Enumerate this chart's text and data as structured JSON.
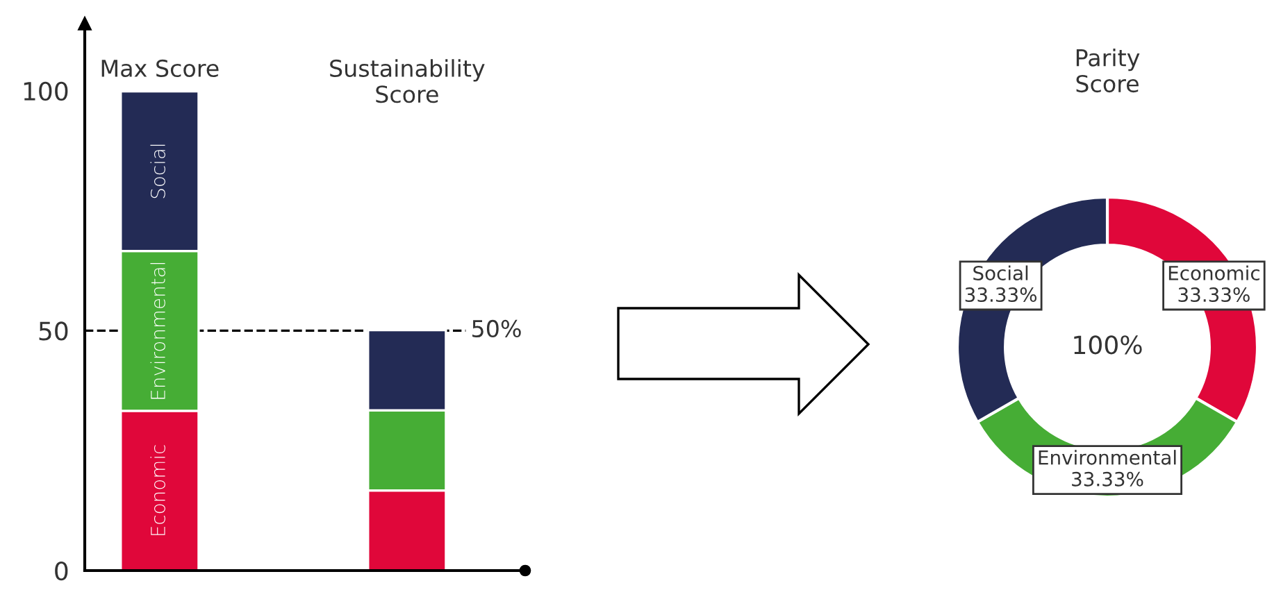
{
  "chart_data": [
    {
      "type": "bar",
      "stacked": true,
      "categories": [
        "Max Score",
        "Sustainability\nScore"
      ],
      "series": [
        {
          "name": "Economic",
          "color": "#e0073a",
          "values": [
            33.3,
            16.7
          ]
        },
        {
          "name": "Environmental",
          "color": "#46ad35",
          "values": [
            33.3,
            16.7
          ]
        },
        {
          "name": "Social",
          "color": "#232b55",
          "values": [
            33.3,
            16.7
          ]
        }
      ],
      "ylim": [
        0,
        114
      ],
      "yticks": [
        0,
        50,
        100
      ],
      "grid": false,
      "legend": false,
      "ref_lines": [
        {
          "axis": "y",
          "value": 50,
          "label": "50%",
          "color": "#000000",
          "line_style": "dashed"
        }
      ]
    },
    {
      "type": "donut",
      "title": "Parity\nScore",
      "categories": [
        "Economic",
        "Environmental",
        "Social"
      ],
      "values": [
        33.33,
        33.33,
        33.33
      ],
      "colors": [
        "#e0073a",
        "#46ad35",
        "#232b55"
      ],
      "value_labels": [
        "33.33%",
        "33.33%",
        "33.33%"
      ],
      "annotations": [
        "100%"
      ]
    }
  ]
}
